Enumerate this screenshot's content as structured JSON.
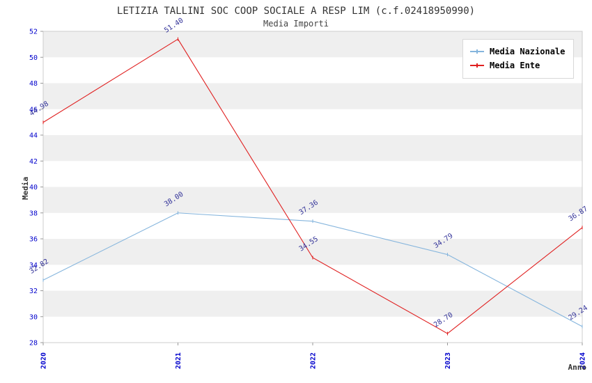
{
  "chart_data": {
    "type": "line",
    "title": "LETIZIA TALLINI SOC COOP SOCIALE A RESP LIM (c.f.02418950990)",
    "subtitle": "Media Importi",
    "ylabel": "Media",
    "xlabel": "Anno",
    "categories": [
      "2020",
      "2021",
      "2022",
      "2023",
      "2024"
    ],
    "ylim": [
      28,
      52
    ],
    "ytick_step": 2,
    "grid": "horizontal-stripes",
    "legend_position": "top-right",
    "series": [
      {
        "name": "Media Nazionale",
        "color": "#85b5dd",
        "values": [
          32.82,
          38.0,
          37.36,
          34.79,
          29.24
        ]
      },
      {
        "name": "Media Ente",
        "color": "#e02020",
        "values": [
          44.98,
          51.4,
          34.55,
          28.7,
          36.87
        ]
      }
    ],
    "colors": {
      "axis_tick_label": "#0000cc",
      "data_label": "#333399",
      "stripe": "#efefef",
      "plot_border": "#cccccc",
      "tick_mark": "#999999",
      "title": "#333333"
    }
  }
}
